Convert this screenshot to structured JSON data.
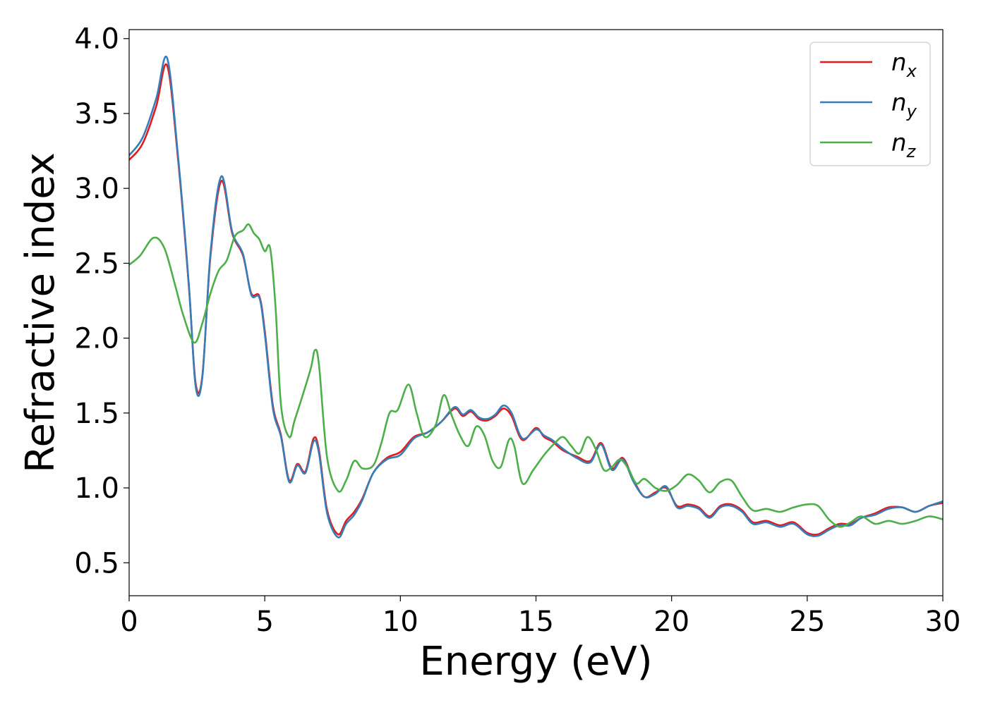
{
  "chart_data": {
    "type": "line",
    "xlabel": "Energy (eV)",
    "ylabel": "Refractive index",
    "xlim": [
      0,
      30
    ],
    "ylim": [
      0.28,
      4.06
    ],
    "xticks": [
      "0",
      "5",
      "10",
      "15",
      "20",
      "25",
      "30"
    ],
    "yticks": [
      "0.5",
      "1.0",
      "1.5",
      "2.0",
      "2.5",
      "3.0",
      "3.5",
      "4.0"
    ],
    "grid": false,
    "legend_position": "top-right",
    "series": [
      {
        "name": "n_x",
        "label_main": "n",
        "label_sub": "x",
        "color": "#e41a1c",
        "x": [
          0,
          0.5,
          1.0,
          1.4,
          1.8,
          2.2,
          2.45,
          2.7,
          3.0,
          3.4,
          3.8,
          4.2,
          4.5,
          4.8,
          5.0,
          5.3,
          5.6,
          5.9,
          6.2,
          6.5,
          6.8,
          7.0,
          7.3,
          7.7,
          8.0,
          8.3,
          8.6,
          9.0,
          9.5,
          10.0,
          10.5,
          11.0,
          11.5,
          12.0,
          12.3,
          12.6,
          12.9,
          13.2,
          13.5,
          13.8,
          14.1,
          14.5,
          15.0,
          15.3,
          15.6,
          16.0,
          16.5,
          17.0,
          17.4,
          17.8,
          18.2,
          18.6,
          19.0,
          19.4,
          19.8,
          20.2,
          20.6,
          21.0,
          21.4,
          21.8,
          22.2,
          22.6,
          23.0,
          23.5,
          24.0,
          24.5,
          25.0,
          25.4,
          25.8,
          26.2,
          26.6,
          27.0,
          27.5,
          28.0,
          28.5,
          29.0,
          29.5,
          30.0
        ],
        "values": [
          3.19,
          3.3,
          3.55,
          3.82,
          3.2,
          2.35,
          1.7,
          1.75,
          2.55,
          3.05,
          2.7,
          2.55,
          2.3,
          2.28,
          2.05,
          1.55,
          1.35,
          1.05,
          1.16,
          1.11,
          1.33,
          1.25,
          0.85,
          0.69,
          0.78,
          0.84,
          0.93,
          1.1,
          1.2,
          1.24,
          1.34,
          1.37,
          1.44,
          1.53,
          1.48,
          1.51,
          1.46,
          1.45,
          1.48,
          1.53,
          1.48,
          1.32,
          1.4,
          1.34,
          1.31,
          1.25,
          1.21,
          1.18,
          1.3,
          1.13,
          1.2,
          1.05,
          0.94,
          0.97,
          1.0,
          0.88,
          0.89,
          0.87,
          0.81,
          0.88,
          0.89,
          0.85,
          0.77,
          0.78,
          0.75,
          0.77,
          0.7,
          0.69,
          0.73,
          0.76,
          0.76,
          0.8,
          0.83,
          0.87,
          0.87,
          0.84,
          0.88,
          0.9
        ]
      },
      {
        "name": "n_y",
        "label_main": "n",
        "label_sub": "y",
        "color": "#377eb8",
        "x": [
          0,
          0.5,
          1.0,
          1.4,
          1.8,
          2.2,
          2.45,
          2.7,
          3.0,
          3.4,
          3.8,
          4.2,
          4.5,
          4.8,
          5.0,
          5.3,
          5.6,
          5.9,
          6.2,
          6.5,
          6.8,
          7.0,
          7.3,
          7.7,
          8.0,
          8.3,
          8.6,
          9.0,
          9.5,
          10.0,
          10.5,
          11.0,
          11.5,
          12.0,
          12.3,
          12.6,
          12.9,
          13.2,
          13.5,
          13.8,
          14.1,
          14.5,
          15.0,
          15.3,
          15.6,
          16.0,
          16.5,
          17.0,
          17.4,
          17.8,
          18.2,
          18.6,
          19.0,
          19.4,
          19.8,
          20.2,
          20.6,
          21.0,
          21.4,
          21.8,
          22.2,
          22.6,
          23.0,
          23.5,
          24.0,
          24.5,
          25.0,
          25.4,
          25.8,
          26.2,
          26.6,
          27.0,
          27.5,
          28.0,
          28.5,
          29.0,
          29.5,
          30.0
        ],
        "values": [
          3.22,
          3.34,
          3.6,
          3.87,
          3.22,
          2.36,
          1.68,
          1.74,
          2.57,
          3.08,
          2.71,
          2.56,
          2.29,
          2.27,
          2.03,
          1.53,
          1.34,
          1.04,
          1.15,
          1.1,
          1.31,
          1.23,
          0.83,
          0.67,
          0.76,
          0.82,
          0.92,
          1.1,
          1.19,
          1.22,
          1.33,
          1.37,
          1.44,
          1.54,
          1.49,
          1.52,
          1.47,
          1.46,
          1.49,
          1.55,
          1.5,
          1.33,
          1.39,
          1.35,
          1.32,
          1.26,
          1.2,
          1.17,
          1.29,
          1.12,
          1.19,
          1.04,
          0.94,
          0.96,
          1.01,
          0.87,
          0.88,
          0.86,
          0.8,
          0.87,
          0.88,
          0.84,
          0.76,
          0.77,
          0.74,
          0.76,
          0.69,
          0.68,
          0.72,
          0.75,
          0.75,
          0.8,
          0.82,
          0.86,
          0.87,
          0.84,
          0.88,
          0.91
        ]
      },
      {
        "name": "n_z",
        "label_main": "n",
        "label_sub": "z",
        "color": "#4daf4a",
        "x": [
          0,
          0.4,
          0.9,
          1.3,
          1.7,
          2.0,
          2.4,
          2.7,
          3.0,
          3.3,
          3.6,
          3.9,
          4.2,
          4.4,
          4.6,
          4.8,
          5.0,
          5.2,
          5.4,
          5.6,
          5.9,
          6.1,
          6.4,
          6.7,
          6.85,
          7.0,
          7.3,
          7.7,
          8.0,
          8.3,
          8.6,
          9.0,
          9.3,
          9.6,
          9.9,
          10.3,
          10.6,
          10.9,
          11.3,
          11.6,
          11.9,
          12.2,
          12.5,
          12.8,
          13.1,
          13.4,
          13.7,
          14.0,
          14.2,
          14.5,
          14.9,
          15.3,
          15.7,
          16.0,
          16.3,
          16.6,
          16.9,
          17.2,
          17.5,
          17.8,
          18.1,
          18.4,
          18.7,
          19.0,
          19.4,
          19.8,
          20.2,
          20.6,
          21.0,
          21.4,
          21.8,
          22.2,
          22.6,
          23.0,
          23.5,
          24.0,
          24.5,
          25.0,
          25.4,
          25.8,
          26.2,
          26.6,
          27.0,
          27.5,
          28.0,
          28.5,
          29.0,
          29.5,
          30.0
        ],
        "values": [
          2.49,
          2.55,
          2.67,
          2.6,
          2.35,
          2.15,
          1.97,
          2.1,
          2.3,
          2.45,
          2.52,
          2.68,
          2.72,
          2.76,
          2.7,
          2.66,
          2.58,
          2.6,
          2.2,
          1.55,
          1.34,
          1.45,
          1.62,
          1.8,
          1.92,
          1.82,
          1.2,
          0.98,
          1.05,
          1.18,
          1.13,
          1.15,
          1.3,
          1.5,
          1.52,
          1.69,
          1.5,
          1.34,
          1.42,
          1.62,
          1.48,
          1.35,
          1.28,
          1.41,
          1.35,
          1.18,
          1.14,
          1.32,
          1.28,
          1.03,
          1.12,
          1.22,
          1.3,
          1.34,
          1.28,
          1.23,
          1.34,
          1.26,
          1.12,
          1.14,
          1.19,
          1.13,
          1.03,
          1.06,
          1.0,
          0.98,
          1.02,
          1.09,
          1.05,
          0.97,
          1.04,
          1.05,
          0.94,
          0.85,
          0.86,
          0.84,
          0.87,
          0.89,
          0.88,
          0.79,
          0.74,
          0.77,
          0.81,
          0.76,
          0.78,
          0.76,
          0.78,
          0.81,
          0.79
        ]
      }
    ]
  }
}
